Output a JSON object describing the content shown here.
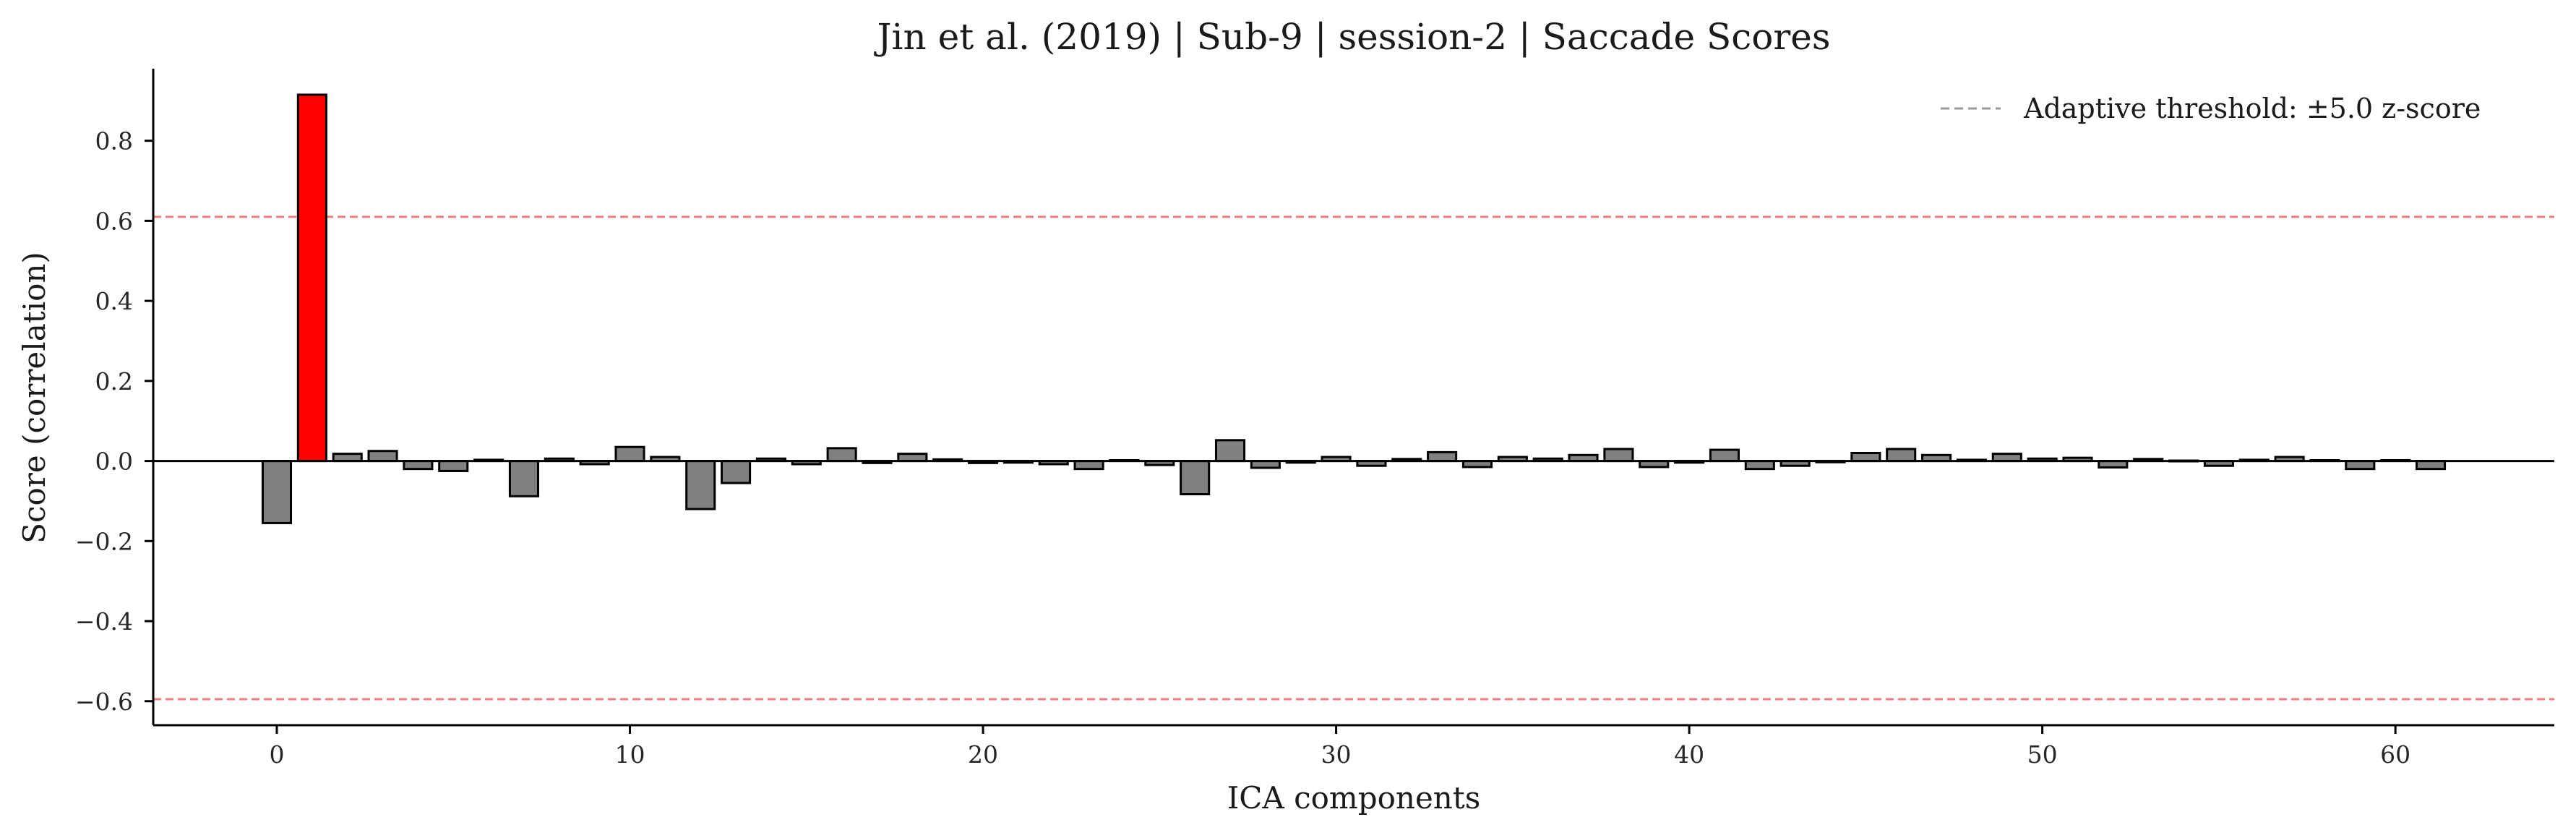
{
  "chart_data": {
    "type": "bar",
    "title": "Jin et al. (2019) | Sub-9 | session-2 | Saccade Scores",
    "xlabel": "ICA components",
    "ylabel": "Score (correlation)",
    "xlim": [
      -3.5,
      64.5
    ],
    "ylim": [
      -0.66,
      0.98
    ],
    "x_ticks": [
      0,
      10,
      20,
      30,
      40,
      50,
      60
    ],
    "y_ticks": [
      -0.6,
      -0.4,
      -0.2,
      0.0,
      0.2,
      0.4,
      0.6,
      0.8
    ],
    "threshold_upper": 0.61,
    "threshold_lower": -0.595,
    "legend": {
      "label": "Adaptive threshold: ±5.0 z-score",
      "position": "top-right"
    },
    "grid": false,
    "colors": {
      "normal": "#808080",
      "flagged": "#ff0000",
      "edge": "#000000",
      "threshold": "#f08080",
      "legend_line": "#999999"
    },
    "components": [
      0,
      1,
      2,
      3,
      4,
      5,
      6,
      7,
      8,
      9,
      10,
      11,
      12,
      13,
      14,
      15,
      16,
      17,
      18,
      19,
      20,
      21,
      22,
      23,
      24,
      25,
      26,
      27,
      28,
      29,
      30,
      31,
      32,
      33,
      34,
      35,
      36,
      37,
      38,
      39,
      40,
      41,
      42,
      43,
      44,
      45,
      46,
      47,
      48,
      49,
      50,
      51,
      52,
      53,
      54,
      55,
      56,
      57,
      58,
      59,
      60,
      61
    ],
    "values": [
      -0.155,
      0.915,
      0.018,
      0.025,
      -0.02,
      -0.025,
      0.003,
      -0.088,
      0.006,
      -0.008,
      0.035,
      0.01,
      -0.12,
      -0.055,
      0.006,
      -0.008,
      0.032,
      -0.005,
      0.018,
      0.004,
      -0.005,
      -0.004,
      -0.008,
      -0.02,
      0.002,
      -0.01,
      -0.083,
      0.052,
      -0.017,
      -0.004,
      0.01,
      -0.012,
      0.005,
      0.022,
      -0.015,
      0.01,
      0.006,
      0.015,
      0.03,
      -0.015,
      -0.004,
      0.028,
      -0.02,
      -0.012,
      -0.003,
      0.02,
      0.03,
      0.015,
      0.003,
      0.018,
      0.006,
      0.008,
      -0.016,
      0.005,
      0.001,
      -0.012,
      0.003,
      0.01,
      0.002,
      -0.02,
      0.002,
      -0.02
    ],
    "flagged": [
      1
    ]
  }
}
